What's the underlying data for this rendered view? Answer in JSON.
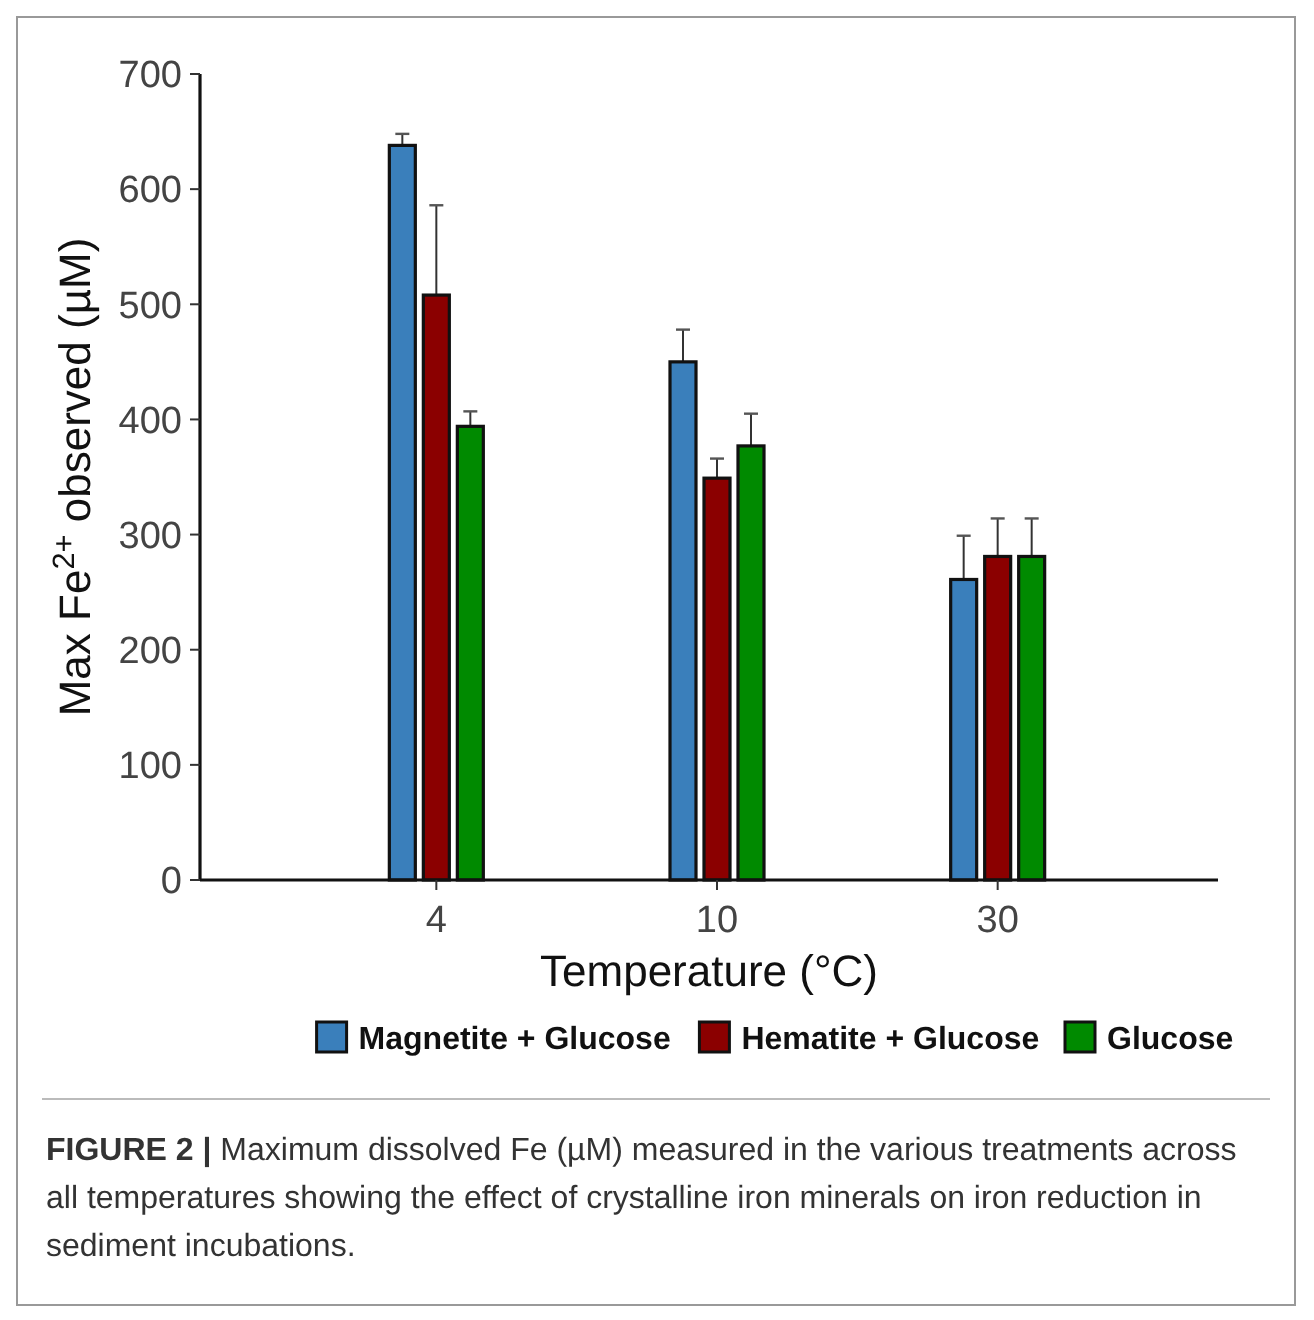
{
  "chart_data": {
    "type": "bar",
    "categories": [
      "4",
      "10",
      "30"
    ],
    "xlabel": "Temperature (°C)",
    "ylabel": "Max Fe$^{2+}$ observed (µM)",
    "ylim": [
      0,
      700
    ],
    "yticks": [
      0,
      100,
      200,
      300,
      400,
      500,
      600,
      700
    ],
    "grid": false,
    "legend": "bottom",
    "series": [
      {
        "name": "Magnetite + Glucose",
        "color": "#3a7fbb",
        "values": [
          638,
          450,
          261
        ],
        "errors": [
          [
            638,
            648
          ],
          [
            450,
            478
          ],
          [
            261,
            299
          ]
        ]
      },
      {
        "name": "Hematite + Glucose",
        "color": "#8b0000",
        "values": [
          508,
          349,
          281
        ],
        "errors": [
          [
            508,
            586
          ],
          [
            349,
            366
          ],
          [
            281,
            314
          ]
        ]
      },
      {
        "name": "Glucose",
        "color": "#008a00",
        "values": [
          394,
          377,
          281
        ],
        "errors": [
          [
            394,
            407
          ],
          [
            377,
            405
          ],
          [
            281,
            314
          ]
        ]
      }
    ],
    "annotations": [
      "FIGURE 2 | Maximum dissolved Fe (µM) measured in the various treatments across all temperatures showing the effect of crystalline iron minerals on iron reduction in sediment incubations."
    ]
  }
}
